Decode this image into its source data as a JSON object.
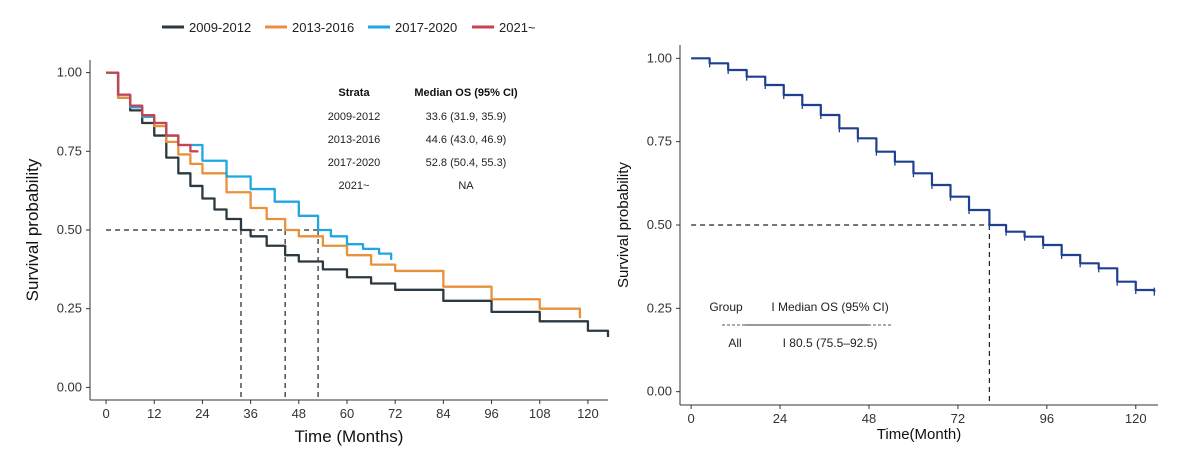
{
  "chart_data": [
    {
      "type": "line",
      "title": "",
      "xlabel": "Time (Months)",
      "ylabel": "Survival probability",
      "xlim": [
        -4,
        125
      ],
      "ylim": [
        -0.04,
        1.04
      ],
      "xticks": [
        0,
        12,
        24,
        36,
        48,
        60,
        72,
        84,
        96,
        108,
        120
      ],
      "yticks": [
        "0.00",
        "0.25",
        "0.50",
        "0.75",
        "1.00"
      ],
      "grid": false,
      "legend": {
        "position": "top",
        "entries": [
          {
            "label": "2009-2012",
            "color": "#2b3a42"
          },
          {
            "label": "2013-2016",
            "color": "#e8913a"
          },
          {
            "label": "2017-2020",
            "color": "#1ea7e0"
          },
          {
            "label": "2021~",
            "color": "#c8434f"
          }
        ]
      },
      "series": [
        {
          "name": "2009-2012",
          "color": "#2b3a42",
          "x": [
            0,
            3,
            6,
            9,
            12,
            15,
            18,
            21,
            24,
            27,
            30,
            33.6,
            36,
            40,
            44.6,
            48,
            54,
            60,
            66,
            72,
            84,
            96,
            108,
            120,
            125
          ],
          "y": [
            1.0,
            0.92,
            0.88,
            0.84,
            0.8,
            0.73,
            0.68,
            0.64,
            0.6,
            0.565,
            0.535,
            0.5,
            0.48,
            0.45,
            0.42,
            0.4,
            0.375,
            0.35,
            0.33,
            0.31,
            0.275,
            0.24,
            0.21,
            0.18,
            0.16
          ]
        },
        {
          "name": "2013-2016",
          "color": "#e8913a",
          "x": [
            0,
            3,
            6,
            9,
            12,
            15,
            18,
            21,
            24,
            30,
            36,
            40,
            44.6,
            48,
            54,
            60,
            66,
            72,
            84,
            96,
            108,
            118
          ],
          "y": [
            1.0,
            0.92,
            0.89,
            0.86,
            0.83,
            0.78,
            0.74,
            0.71,
            0.68,
            0.62,
            0.57,
            0.535,
            0.5,
            0.48,
            0.45,
            0.42,
            0.39,
            0.37,
            0.32,
            0.28,
            0.25,
            0.22
          ]
        },
        {
          "name": "2017-2020",
          "color": "#1ea7e0",
          "x": [
            0,
            3,
            6,
            9,
            12,
            15,
            18,
            24,
            30,
            36,
            42,
            48,
            52.8,
            56,
            60,
            64,
            68,
            71
          ],
          "y": [
            1.0,
            0.93,
            0.89,
            0.86,
            0.84,
            0.8,
            0.77,
            0.72,
            0.67,
            0.63,
            0.59,
            0.545,
            0.5,
            0.48,
            0.455,
            0.44,
            0.425,
            0.405
          ]
        },
        {
          "name": "2021~",
          "color": "#c8434f",
          "x": [
            0,
            3,
            6,
            9,
            12,
            15,
            18,
            21,
            23
          ],
          "y": [
            1.0,
            0.93,
            0.895,
            0.865,
            0.84,
            0.8,
            0.77,
            0.75,
            0.75
          ]
        }
      ],
      "reference": {
        "y": 0.5,
        "medians": [
          33.6,
          44.6,
          52.8
        ]
      },
      "table": {
        "headers": [
          "Strata",
          "Median OS (95% CI)"
        ],
        "rows": [
          [
            "2009-2012",
            "33.6 (31.9, 35.9)"
          ],
          [
            "2013-2016",
            "44.6 (43.0, 46.9)"
          ],
          [
            "2017-2020",
            "52.8 (50.4, 55.3)"
          ],
          [
            "2021~",
            "NA"
          ]
        ]
      }
    },
    {
      "type": "line",
      "title": "",
      "xlabel": "Time(Month)",
      "ylabel": "Survival probability",
      "xlim": [
        -3,
        126
      ],
      "ylim": [
        -0.04,
        1.04
      ],
      "xticks": [
        0,
        24,
        48,
        72,
        96,
        120
      ],
      "yticks": [
        "0.00",
        "0.25",
        "0.50",
        "0.75",
        "1.00"
      ],
      "grid": false,
      "series": [
        {
          "name": "All",
          "color": "#1f3f8f",
          "x": [
            0,
            5,
            10,
            15,
            20,
            25,
            30,
            35,
            40,
            45,
            50,
            55,
            60,
            65,
            70,
            75,
            80.5,
            85,
            90,
            95,
            100,
            105,
            110,
            115,
            120,
            125
          ],
          "y": [
            1.0,
            0.985,
            0.965,
            0.945,
            0.92,
            0.89,
            0.86,
            0.83,
            0.79,
            0.76,
            0.72,
            0.69,
            0.655,
            0.62,
            0.585,
            0.545,
            0.5,
            0.48,
            0.465,
            0.44,
            0.41,
            0.385,
            0.37,
            0.33,
            0.305,
            0.3
          ]
        }
      ],
      "reference": {
        "y": 0.5,
        "medians": [
          80.5
        ]
      },
      "table": {
        "headers": [
          "Group",
          "I Median OS (95% CI)"
        ],
        "rows": [
          [
            "All",
            "I 80.5 (75.5–92.5)"
          ]
        ]
      }
    }
  ]
}
